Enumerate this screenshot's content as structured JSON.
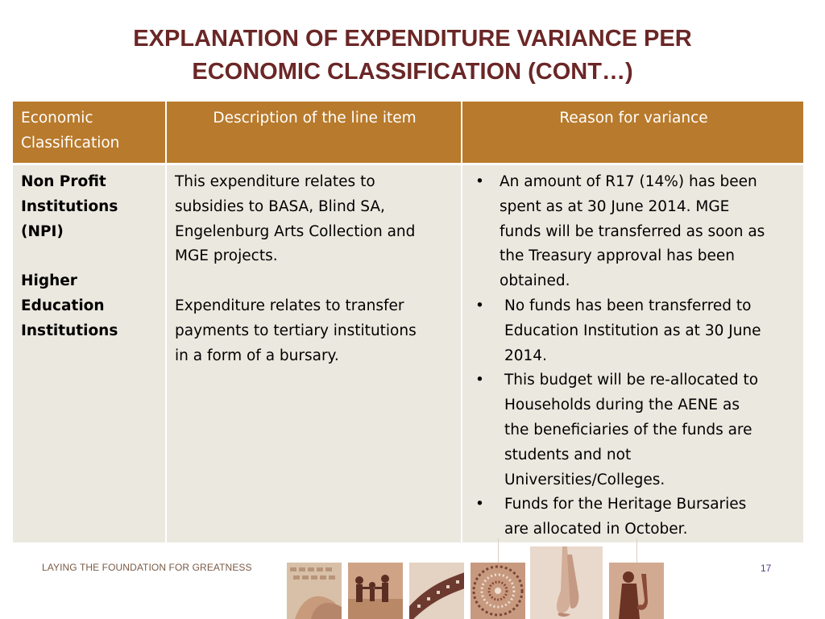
{
  "slide": {
    "title_line1": "EXPLANATION OF EXPENDITURE VARIANCE PER",
    "title_line2": "ECONOMIC CLASSIFICATION (CONT…)"
  },
  "table": {
    "headers": [
      "Economic Classification",
      "Description of the line item",
      "Reason for variance"
    ],
    "rows": [
      {
        "classification": "Non Profit\nInstitutions\n(NPI)",
        "description": "This expenditure relates to\nsubsidies to BASA, Blind SA,\nEngelenburg Arts Collection and\nMGE projects."
      },
      {
        "classification": "Higher\nEducation\nInstitutions",
        "description": "Expenditure relates to transfer\npayments to tertiary institutions\nin a form of a bursary."
      }
    ],
    "reasons": [
      "An amount of R17 (14%) has been\nspent as at 30 June 2014. MGE\nfunds will be transferred as soon as\nthe Treasury approval has been\nobtained.",
      "  No funds has been transferred to\nEducation Institution as  at 30 June\n2014.",
      "This budget will be re-allocated to\nHouseholds during the AENE as\nthe beneficiaries of the funds are\nstudents and not\nUniversities/Colleges.",
      "Funds for the Heritage Bursaries\nare allocated in October."
    ],
    "bullet_char": "•"
  },
  "footer": {
    "tagline": "LAYING THE FOUNDATION FOR GREATNESS",
    "page_number": "17"
  },
  "colors": {
    "title": "#6b2626",
    "header_bg": "#b87a2c",
    "cell_bg": "#ebe8df",
    "footer_text": "#7a5a45",
    "page_number": "#5a3a8a"
  },
  "footer_images": [
    "keyboard-photo",
    "family-silhouette-photo",
    "film-reel-photo",
    "beadwork-pattern-photo",
    "ballet-shoes-photo",
    "saxophone-player-photo"
  ]
}
